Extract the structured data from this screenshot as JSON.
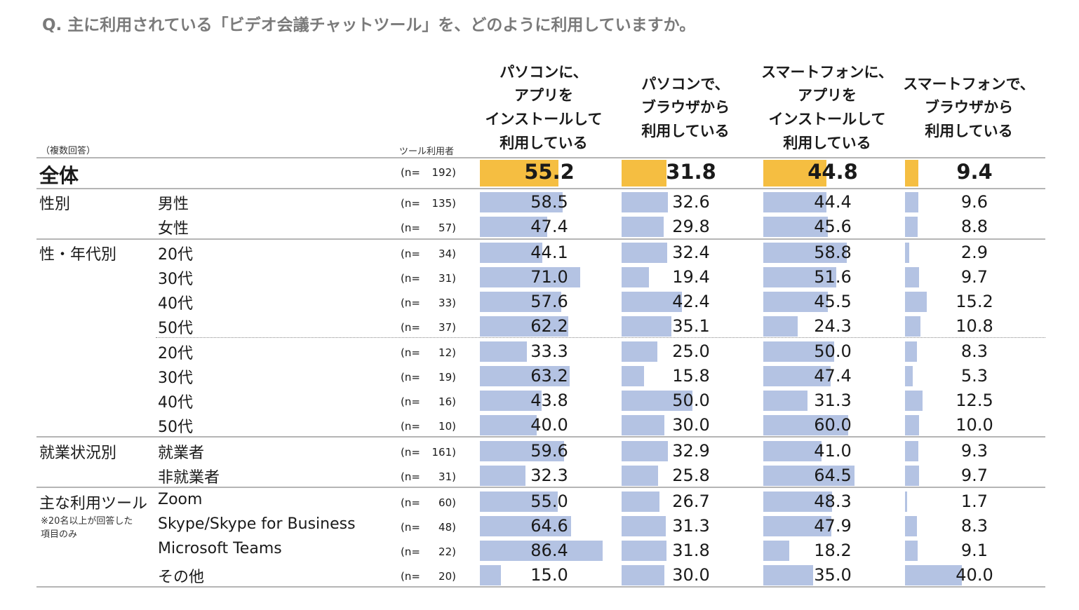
{
  "title": "Q.  主に利用されている「ビデオ会議チャットツール」を、どのように利用していますか。",
  "multi_answer_note": "（複数回答）",
  "users_label": "ツール利用者",
  "n_prefix": "(n=",
  "note": "※20名以上が回答した\n項目のみ",
  "colors": {
    "highlight": "#F5BE41",
    "bar": "#B4C3E3",
    "rule": "#B5B5B5",
    "title": "#7A7A7A"
  },
  "chart_data": {
    "type": "table",
    "title": "Q.  主に利用されている「ビデオ会議チャットツール」を、どのように利用していますか。",
    "columns": [
      "パソコンに、\nアプリを\nインストールして\n利用している",
      "パソコンで、\nブラウザから\n利用している",
      "スマートフォンに、\nアプリを\nインストールして\n利用している",
      "スマートフォンで、\nブラウザから\n利用している"
    ],
    "scale_max": 100,
    "rows": [
      {
        "group": "全体",
        "label": "",
        "n": "192)",
        "values": [
          55.2,
          31.8,
          44.8,
          9.4
        ],
        "total": true
      },
      {
        "group": "性別",
        "label": "男性",
        "n": "135)",
        "values": [
          58.5,
          32.6,
          44.4,
          9.6
        ]
      },
      {
        "group": "",
        "label": "女性",
        "n": "57)",
        "values": [
          47.4,
          29.8,
          45.6,
          8.8
        ]
      },
      {
        "group": "性・年代別",
        "label": "20代",
        "n": "34)",
        "values": [
          44.1,
          32.4,
          58.8,
          2.9
        ]
      },
      {
        "group": "",
        "label": "30代",
        "n": "31)",
        "values": [
          71.0,
          19.4,
          51.6,
          9.7
        ]
      },
      {
        "group": "",
        "label": "40代",
        "n": "33)",
        "values": [
          57.6,
          42.4,
          45.5,
          15.2
        ]
      },
      {
        "group": "",
        "label": "50代",
        "n": "37)",
        "values": [
          62.2,
          35.1,
          24.3,
          10.8
        ]
      },
      {
        "group": "",
        "label": "20代",
        "n": "12)",
        "values": [
          33.3,
          25.0,
          50.0,
          8.3
        ]
      },
      {
        "group": "",
        "label": "30代",
        "n": "19)",
        "values": [
          63.2,
          15.8,
          47.4,
          5.3
        ]
      },
      {
        "group": "",
        "label": "40代",
        "n": "16)",
        "values": [
          43.8,
          50.0,
          31.3,
          12.5
        ]
      },
      {
        "group": "",
        "label": "50代",
        "n": "10)",
        "values": [
          40.0,
          30.0,
          60.0,
          10.0
        ]
      },
      {
        "group": "就業状況別",
        "label": "就業者",
        "n": "161)",
        "values": [
          59.6,
          32.9,
          41.0,
          9.3
        ]
      },
      {
        "group": "",
        "label": "非就業者",
        "n": "31)",
        "values": [
          32.3,
          25.8,
          64.5,
          9.7
        ]
      },
      {
        "group": "主な利用ツール",
        "label": "Zoom",
        "n": "60)",
        "values": [
          55.0,
          26.7,
          48.3,
          1.7
        ]
      },
      {
        "group": "",
        "label": "Skype/Skype for Business",
        "n": "48)",
        "values": [
          64.6,
          31.3,
          47.9,
          8.3
        ]
      },
      {
        "group": "",
        "label": "Microsoft Teams",
        "n": "22)",
        "values": [
          86.4,
          31.8,
          18.2,
          9.1
        ]
      },
      {
        "group": "",
        "label": "その他",
        "n": "20)",
        "values": [
          15.0,
          30.0,
          35.0,
          40.0
        ]
      }
    ]
  }
}
